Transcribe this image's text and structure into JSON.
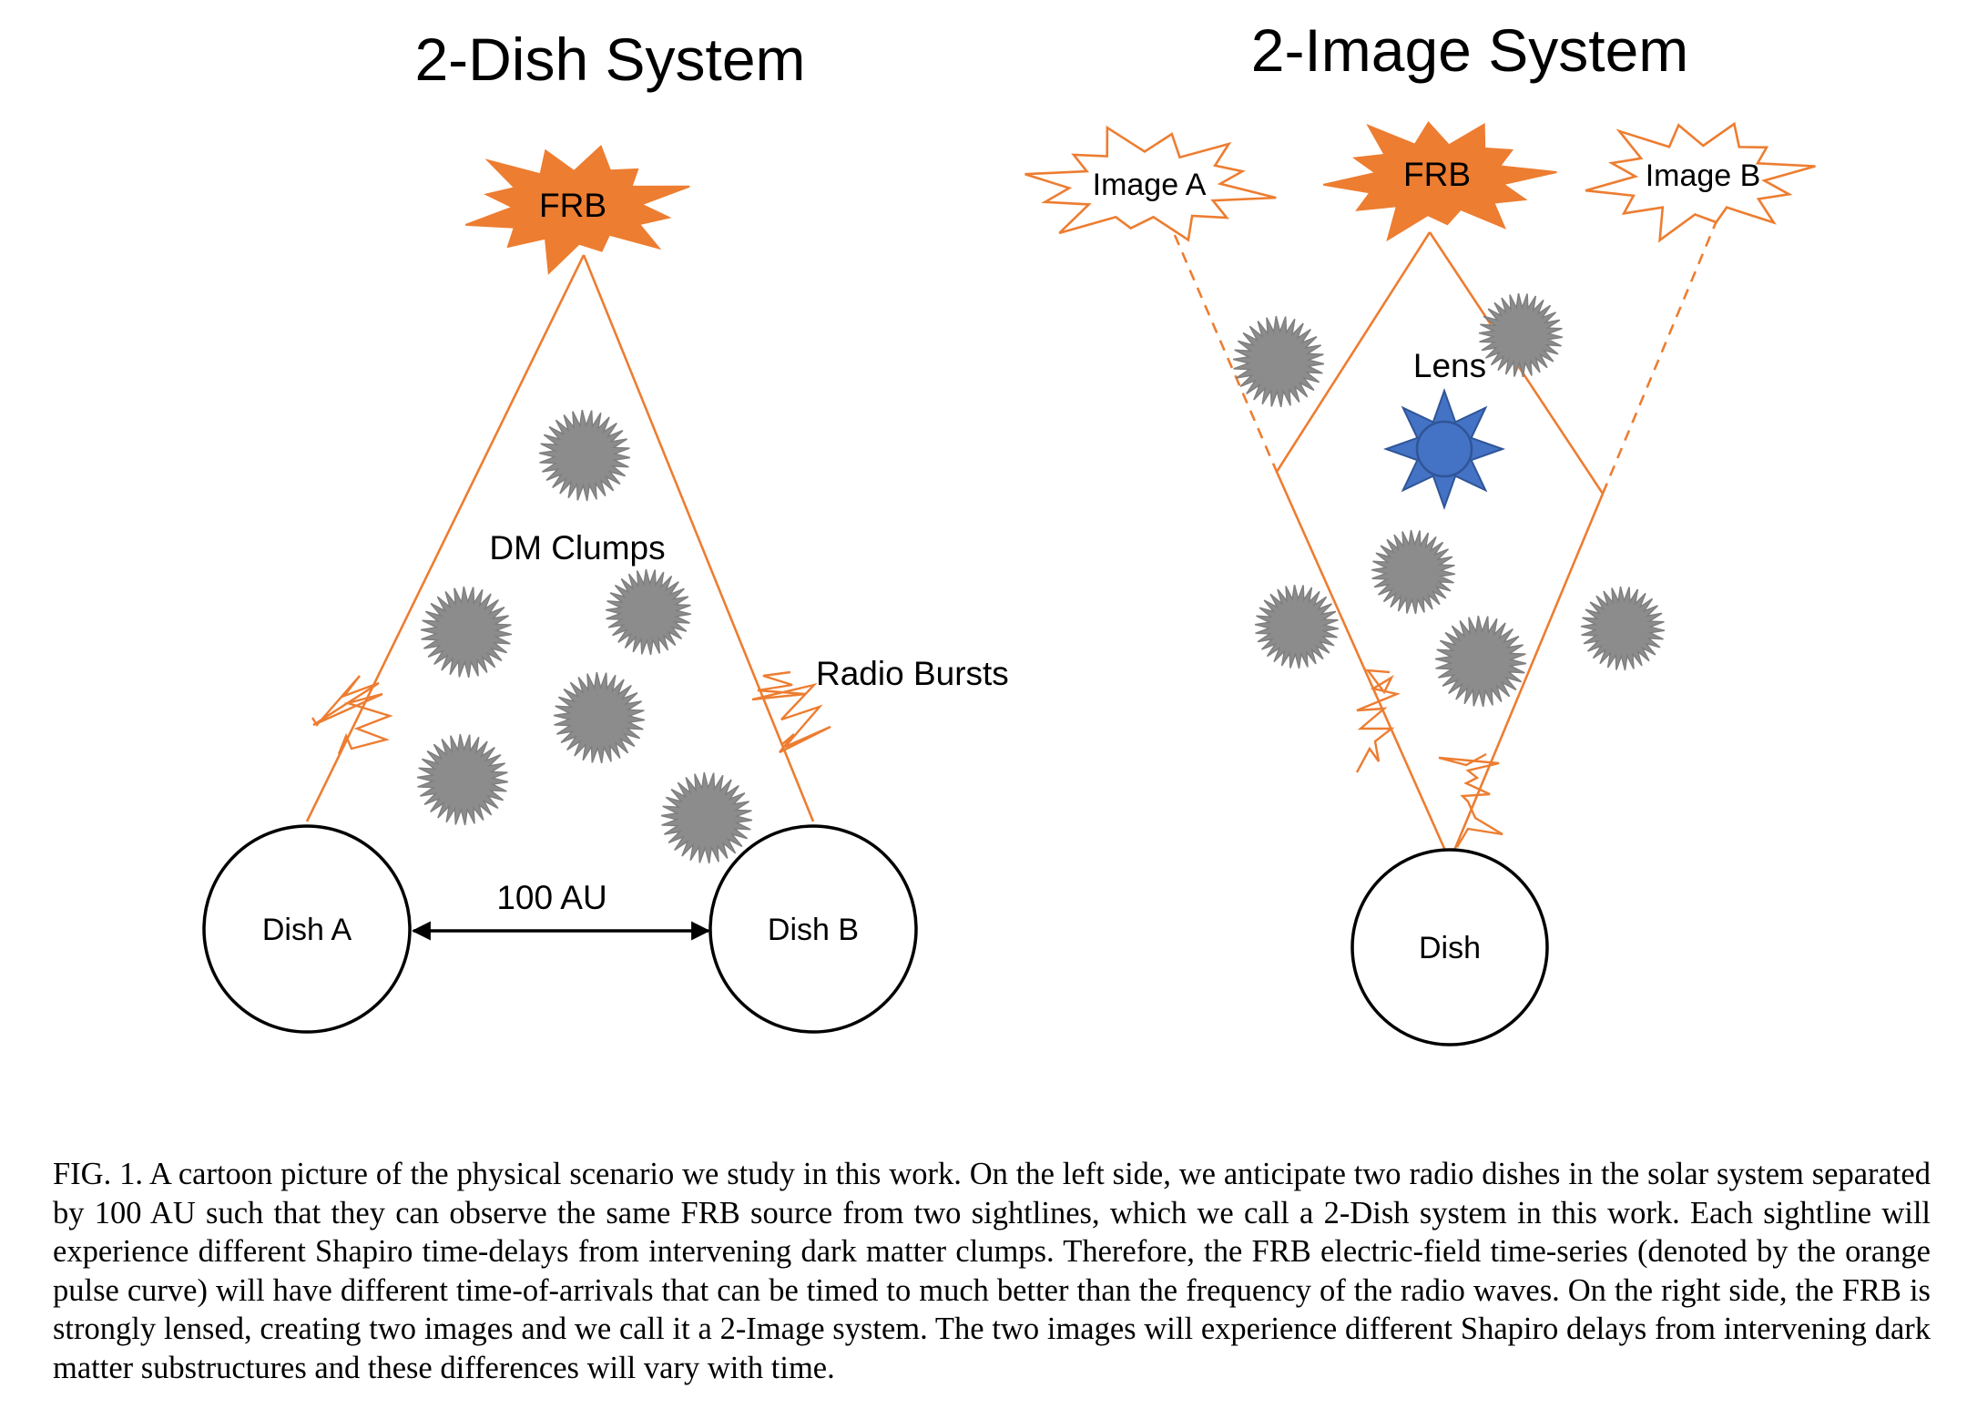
{
  "colors": {
    "beam": "#ED7D31",
    "starburst": "#ED7D31",
    "clump_fill": "#8C8C8C",
    "clump_stroke": "#7F7F7F",
    "lens_fill": "#4472C4",
    "lens_stroke": "#2F5597",
    "ink": "#000000"
  },
  "left_panel": {
    "title": "2-Dish System",
    "source_label": "FRB",
    "clumps_label": "DM Clumps",
    "bursts_label": "Radio Bursts",
    "separation_label": "100 AU",
    "dish_a_label": "Dish A",
    "dish_b_label": "Dish B"
  },
  "right_panel": {
    "title": "2-Image System",
    "source_label": "FRB",
    "image_a_label": "Image A",
    "image_b_label": "Image B",
    "lens_label": "Lens",
    "dish_label": "Dish"
  },
  "caption": "FIG. 1. A cartoon picture of the physical scenario we study in this work. On the left side, we anticipate two radio dishes in the solar system separated by 100 AU such that they can observe the same FRB source from two sightlines, which we call a 2-Dish system in this work. Each sightline will experience different Shapiro time-delays from intervening dark matter clumps. Therefore, the FRB electric-field time-series (denoted by the orange pulse curve) will have different time-of-arrivals that can be timed to much better than the frequency of the radio waves. On the right side, the FRB is strongly lensed, creating two images and we call it a 2-Image system. The two images will experience different Shapiro delays from intervening dark matter substructures and these differences will vary with time."
}
